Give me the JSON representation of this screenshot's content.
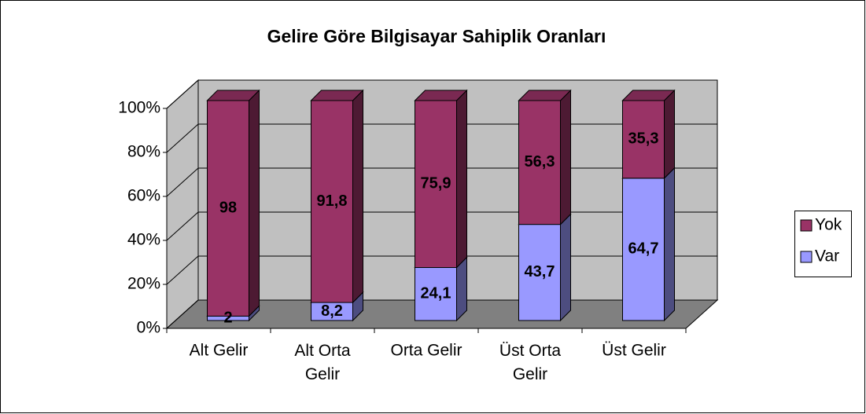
{
  "chart_data": {
    "type": "bar3d_stacked",
    "title": "Gelire Göre Bilgisayar Sahiplik Oranları",
    "categories": [
      "Alt Gelir",
      "Alt Orta Gelir",
      "Orta Gelir",
      "Üst Orta Gelir",
      "Üst Gelir"
    ],
    "series": [
      {
        "name": "Var",
        "color": "#9999ff",
        "values": [
          2,
          8.2,
          24.1,
          43.7,
          64.7
        ],
        "value_labels": [
          "2",
          "8,2",
          "24,1",
          "43,7",
          "64,7"
        ]
      },
      {
        "name": "Yok",
        "color": "#993366",
        "values": [
          98,
          91.8,
          75.9,
          56.3,
          35.3
        ],
        "value_labels": [
          "98",
          "91,8",
          "75,9",
          "56,3",
          "35,3"
        ]
      }
    ],
    "ylim": [
      0,
      100
    ],
    "yticks": [
      {
        "value": 0,
        "label": "0%"
      },
      {
        "value": 20,
        "label": "20%"
      },
      {
        "value": 40,
        "label": "40%"
      },
      {
        "value": 60,
        "label": "60%"
      },
      {
        "value": 80,
        "label": "80%"
      },
      {
        "value": 100,
        "label": "100%"
      }
    ],
    "grid": true,
    "legend": "right"
  }
}
